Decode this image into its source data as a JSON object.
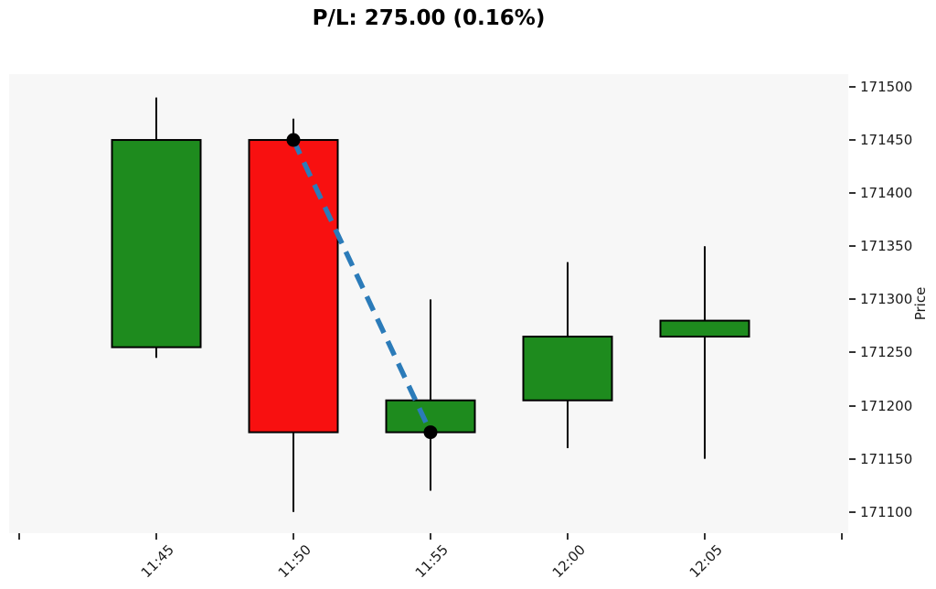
{
  "header": {
    "title": "P/L: 275.00 (0.16%)",
    "pl_value": "275.00",
    "pl_percent": "0.16%"
  },
  "chart_data": {
    "type": "candlestick",
    "title": "P/L: 275.00 (0.16%)",
    "x_tick_labels": [
      "11:45",
      "11:50",
      "11:55",
      "12:00",
      "12:05"
    ],
    "y_axis_label": "Price",
    "y_ticks": [
      171500,
      171450,
      171400,
      171350,
      171300,
      171250,
      171200,
      171150,
      171100
    ],
    "ylim": [
      171080,
      171512
    ],
    "grid": false,
    "legend": null,
    "candles": [
      {
        "time": "11:45",
        "open": 171255,
        "high": 171490,
        "low": 171245,
        "close": 171450,
        "direction": "up"
      },
      {
        "time": "11:50",
        "open": 171450,
        "high": 171470,
        "low": 171100,
        "close": 171175,
        "direction": "down"
      },
      {
        "time": "11:55",
        "open": 171175,
        "high": 171300,
        "low": 171120,
        "close": 171205,
        "direction": "up"
      },
      {
        "time": "12:00",
        "open": 171205,
        "high": 171335,
        "low": 171160,
        "close": 171265,
        "direction": "up"
      },
      {
        "time": "12:05",
        "open": 171265,
        "high": 171350,
        "low": 171150,
        "close": 171280,
        "direction": "up"
      }
    ],
    "trade_line": {
      "style": "dashed",
      "points": [
        {
          "time": "11:50",
          "price": 171450
        },
        {
          "time": "11:55",
          "price": 171175
        }
      ]
    },
    "colors": {
      "up": "#1E8B1E",
      "down": "#F81010",
      "wick": "#000000",
      "body_edge": "#000000",
      "trade_line": "#2B7BB9",
      "marker": "#000000",
      "plot_bg": "#F7F7F7",
      "figure_bg": "#FFFFFF",
      "tick": "#333333",
      "tick_label": "#1A1A1A"
    }
  }
}
